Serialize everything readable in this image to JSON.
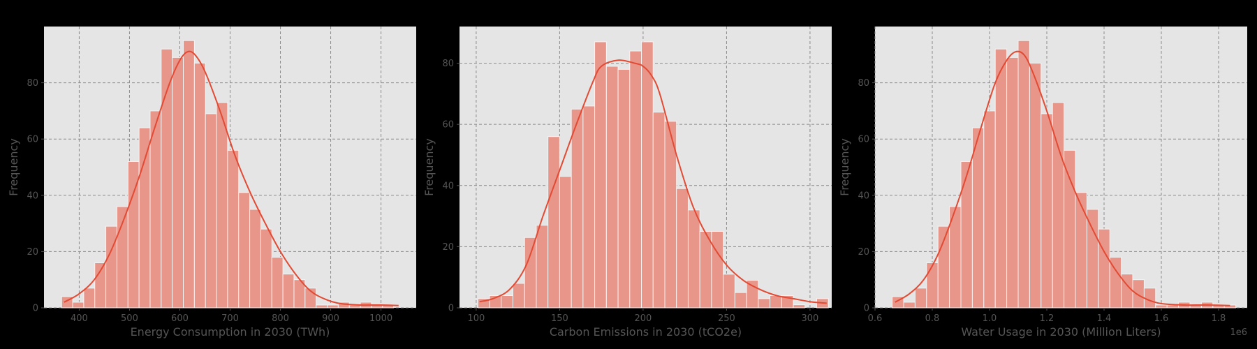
{
  "colors": {
    "figure_bg": "#000000",
    "axes_bg": "#e5e5e5",
    "bar_fill": "#e8958a",
    "bar_edge": "#f4f4f4",
    "kde_line": "#e24a33",
    "grid": "#8a8a8a",
    "text": "#555555"
  },
  "chart_data": [
    {
      "type": "bar",
      "title": "",
      "xlabel": "Energy Consumption in 2030 (TWh)",
      "ylabel": "Frequency",
      "xlim": [
        330,
        1070
      ],
      "ylim": [
        0,
        100
      ],
      "xticks": [
        400,
        500,
        600,
        700,
        800,
        900,
        1000
      ],
      "xtick_labels": [
        "400",
        "500",
        "600",
        "700",
        "800",
        "900",
        "1000"
      ],
      "yticks": [
        0,
        20,
        40,
        60,
        80
      ],
      "ytick_labels": [
        "0",
        "20",
        "40",
        "60",
        "80"
      ],
      "grid": true,
      "bins_start": 365,
      "bin_width": 22,
      "counts": [
        4,
        2,
        7,
        16,
        29,
        36,
        52,
        64,
        70,
        92,
        89,
        95,
        87,
        69,
        73,
        56,
        41,
        35,
        28,
        18,
        12,
        10,
        7,
        1,
        1,
        2,
        1,
        2,
        1,
        1
      ],
      "kde": {
        "x": [
          370,
          400,
          430,
          460,
          490,
          520,
          550,
          580,
          600,
          615,
          630,
          650,
          680,
          710,
          740,
          770,
          800,
          830,
          860,
          890,
          920,
          960,
          1000,
          1035
        ],
        "y": [
          2,
          5,
          10,
          19,
          32,
          47,
          64,
          80,
          88,
          91,
          90,
          84,
          70,
          54,
          41,
          30,
          20,
          12,
          6,
          3,
          1.5,
          1,
          1,
          0.8
        ]
      }
    },
    {
      "type": "bar",
      "title": "",
      "xlabel": "Carbon Emissions in 2030 (tCO2e)",
      "ylabel": "Frequency",
      "xlim": [
        90,
        313
      ],
      "ylim": [
        0,
        92
      ],
      "xticks": [
        100,
        150,
        200,
        250,
        300
      ],
      "xtick_labels": [
        "100",
        "150",
        "200",
        "250",
        "300"
      ],
      "yticks": [
        0,
        20,
        40,
        60,
        80
      ],
      "ytick_labels": [
        "0",
        "20",
        "40",
        "60",
        "80"
      ],
      "grid": true,
      "bins_start": 101,
      "bin_width": 7,
      "counts": [
        3,
        4,
        4,
        8,
        23,
        27,
        56,
        43,
        65,
        66,
        87,
        79,
        78,
        84,
        87,
        64,
        61,
        39,
        32,
        25,
        25,
        11,
        5,
        9,
        3,
        4,
        4,
        1,
        0,
        3
      ],
      "kde": {
        "x": [
          102,
          110,
          120,
          130,
          140,
          150,
          160,
          170,
          175,
          185,
          195,
          200,
          205,
          210,
          220,
          230,
          240,
          250,
          260,
          270,
          280,
          290,
          300,
          310
        ],
        "y": [
          2,
          3,
          6,
          14,
          30,
          45,
          60,
          74,
          79,
          81,
          80,
          79,
          76,
          70,
          50,
          33,
          22,
          14,
          9,
          6,
          4,
          3,
          2,
          1.5
        ]
      }
    },
    {
      "type": "bar",
      "title": "",
      "xlabel": "Water Usage in 2030 (Million Liters)",
      "ylabel": "Frequency",
      "offset_label": "1e6",
      "xlim": [
        0.6,
        1.9
      ],
      "ylim": [
        0,
        100
      ],
      "xticks": [
        0.6,
        0.8,
        1.0,
        1.2,
        1.4,
        1.6,
        1.8
      ],
      "xtick_labels": [
        "0.6",
        "0.8",
        "1.0",
        "1.2",
        "1.4",
        "1.6",
        "1.8"
      ],
      "yticks": [
        0,
        20,
        40,
        60,
        80
      ],
      "ytick_labels": [
        "0",
        "20",
        "40",
        "60",
        "80"
      ],
      "grid": true,
      "bins_start": 0.66,
      "bin_width": 0.04,
      "counts": [
        4,
        2,
        7,
        16,
        29,
        36,
        52,
        64,
        70,
        92,
        89,
        95,
        87,
        69,
        73,
        56,
        41,
        35,
        28,
        18,
        12,
        10,
        7,
        1,
        1,
        2,
        1,
        2,
        1,
        1
      ],
      "kde": {
        "x": [
          0.67,
          0.72,
          0.77,
          0.82,
          0.87,
          0.92,
          0.97,
          1.02,
          1.06,
          1.09,
          1.12,
          1.15,
          1.2,
          1.25,
          1.3,
          1.35,
          1.4,
          1.45,
          1.5,
          1.55,
          1.6,
          1.68,
          1.76,
          1.84
        ],
        "y": [
          2,
          5,
          10,
          19,
          32,
          47,
          64,
          80,
          88,
          91,
          90,
          84,
          70,
          54,
          41,
          30,
          20,
          12,
          6,
          3,
          1.5,
          1,
          1,
          0.8
        ]
      }
    }
  ]
}
